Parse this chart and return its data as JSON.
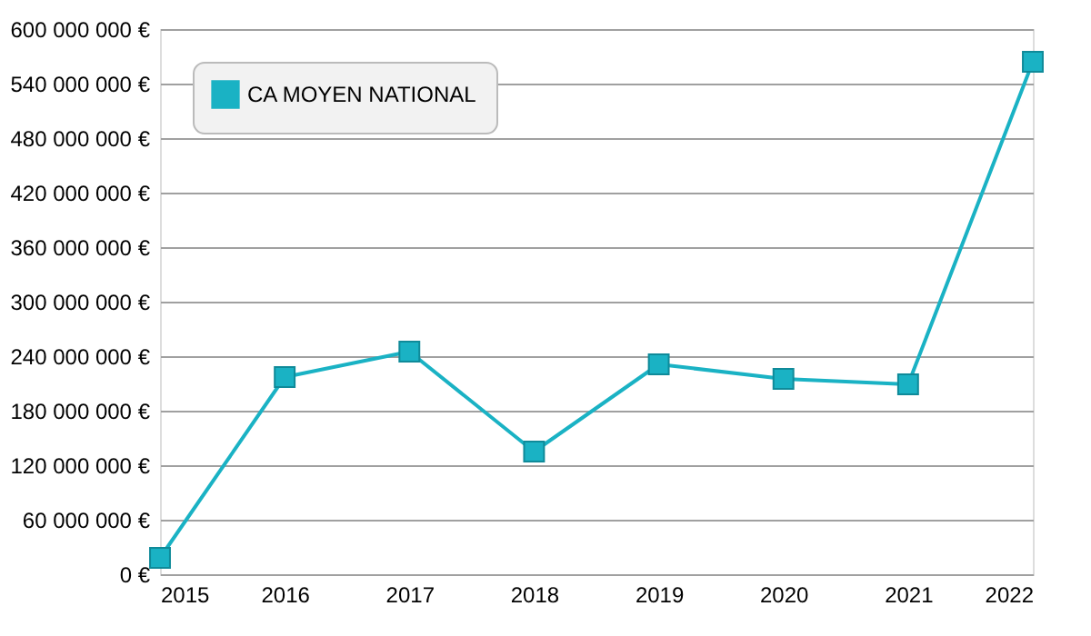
{
  "chart_data": {
    "type": "line",
    "x": [
      2015,
      2016,
      2017,
      2018,
      2019,
      2020,
      2021,
      2022
    ],
    "series": [
      {
        "name": "CA MOYEN NATIONAL",
        "color": "#1ab2c4",
        "values": [
          18000000,
          217000000,
          245000000,
          135000000,
          231000000,
          215000000,
          209000000,
          564000000
        ]
      }
    ],
    "xlim": [
      2015,
      2022
    ],
    "xticks": [
      2015,
      2016,
      2017,
      2018,
      2019,
      2020,
      2021,
      2022
    ],
    "ylim": [
      0,
      600000000
    ],
    "yticks": [
      {
        "value": 0,
        "label": "0 €"
      },
      {
        "value": 60000000,
        "label": "60 000 000 €"
      },
      {
        "value": 120000000,
        "label": "120 000 000 €"
      },
      {
        "value": 180000000,
        "label": "180 000 000 €"
      },
      {
        "value": 240000000,
        "label": "240 000 000 €"
      },
      {
        "value": 300000000,
        "label": "300 000 000 €"
      },
      {
        "value": 360000000,
        "label": "360 000 000 €"
      },
      {
        "value": 420000000,
        "label": "420 000 000 €"
      },
      {
        "value": 480000000,
        "label": "480 000 000 €"
      },
      {
        "value": 540000000,
        "label": "540 000 000 €"
      },
      {
        "value": 600000000,
        "label": "600 000 000 €"
      }
    ],
    "grid": "y",
    "legend": "top left",
    "marker": "square",
    "line_style": "solid"
  }
}
